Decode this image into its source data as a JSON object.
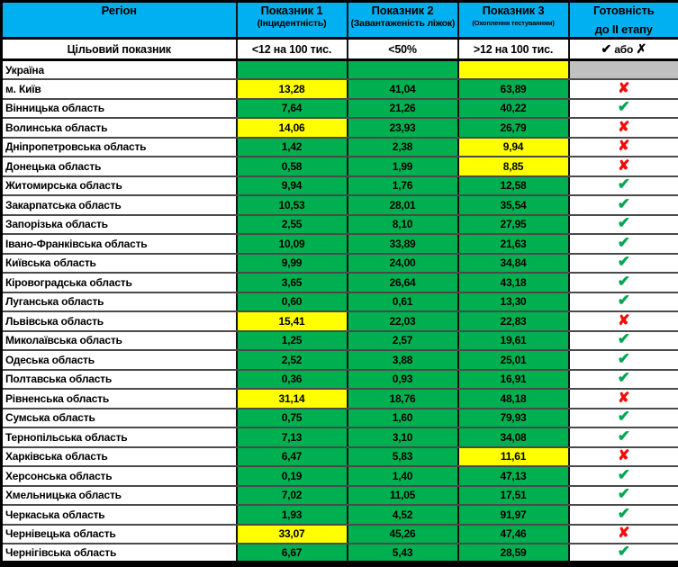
{
  "colors": {
    "header-blue": "#00B0F0",
    "green": "#00B050",
    "yellow": "#FFFF00",
    "gray": "#C0C0C0",
    "check-green": "#00A651",
    "x-red": "#F40A0A"
  },
  "icons": {
    "check": "✔",
    "x": "✘"
  },
  "chart_data": {
    "type": "table",
    "header": {
      "columns": [
        {
          "title": "Регіон",
          "subtitle": ""
        },
        {
          "title": "Показник 1",
          "subtitle": "(Інцидентність)"
        },
        {
          "title": "Показник 2",
          "subtitle": "(Завантаженість ліжок)"
        },
        {
          "title": "Показник 3",
          "subtitle": "(Охоплення тестуванням)"
        },
        {
          "title": "Готовність",
          "subtitle": "до II етапу"
        }
      ]
    },
    "target": {
      "label": "Цільовий показник",
      "values": [
        "<12 на 100 тис.",
        "<50%",
        ">12 на 100 тис."
      ],
      "ready": {
        "check": "✔",
        "or_text": "або",
        "x": "✗"
      }
    },
    "rows": [
      {
        "region": "Україна",
        "v1": "",
        "c1": "green",
        "v2": "",
        "c2": "green",
        "v3": "",
        "c3": "yellow",
        "ready": "empty"
      },
      {
        "region": "м. Київ",
        "v1": "13,28",
        "c1": "yellow",
        "v2": "41,04",
        "c2": "green",
        "v3": "63,89",
        "c3": "green",
        "ready": "x"
      },
      {
        "region": "Вінницька область",
        "v1": "7,64",
        "c1": "green",
        "v2": "21,26",
        "c2": "green",
        "v3": "40,22",
        "c3": "green",
        "ready": "check"
      },
      {
        "region": "Волинська область",
        "v1": "14,06",
        "c1": "yellow",
        "v2": "23,93",
        "c2": "green",
        "v3": "26,79",
        "c3": "green",
        "ready": "x"
      },
      {
        "region": "Дніпропетровська область",
        "v1": "1,42",
        "c1": "green",
        "v2": "2,38",
        "c2": "green",
        "v3": "9,94",
        "c3": "yellow",
        "ready": "x"
      },
      {
        "region": "Донецька область",
        "v1": "0,58",
        "c1": "green",
        "v2": "1,99",
        "c2": "green",
        "v3": "8,85",
        "c3": "yellow",
        "ready": "x"
      },
      {
        "region": "Житомирська область",
        "v1": "9,94",
        "c1": "green",
        "v2": "1,76",
        "c2": "green",
        "v3": "12,58",
        "c3": "green",
        "ready": "check"
      },
      {
        "region": "Закарпатська область",
        "v1": "10,53",
        "c1": "green",
        "v2": "28,01",
        "c2": "green",
        "v3": "35,54",
        "c3": "green",
        "ready": "check"
      },
      {
        "region": "Запорізька область",
        "v1": "2,55",
        "c1": "green",
        "v2": "8,10",
        "c2": "green",
        "v3": "27,95",
        "c3": "green",
        "ready": "check"
      },
      {
        "region": "Івано-Франківська область",
        "v1": "10,09",
        "c1": "green",
        "v2": "33,89",
        "c2": "green",
        "v3": "21,63",
        "c3": "green",
        "ready": "check"
      },
      {
        "region": "Київська область",
        "v1": "9,99",
        "c1": "green",
        "v2": "24,00",
        "c2": "green",
        "v3": "34,84",
        "c3": "green",
        "ready": "check"
      },
      {
        "region": "Кіровоградська область",
        "v1": "3,65",
        "c1": "green",
        "v2": "26,64",
        "c2": "green",
        "v3": "43,18",
        "c3": "green",
        "ready": "check"
      },
      {
        "region": "Луганська область",
        "v1": "0,60",
        "c1": "green",
        "v2": "0,61",
        "c2": "green",
        "v3": "13,30",
        "c3": "green",
        "ready": "check"
      },
      {
        "region": "Львівська область",
        "v1": "15,41",
        "c1": "yellow",
        "v2": "22,03",
        "c2": "green",
        "v3": "22,83",
        "c3": "green",
        "ready": "x"
      },
      {
        "region": "Миколаївська область",
        "v1": "1,25",
        "c1": "green",
        "v2": "2,57",
        "c2": "green",
        "v3": "19,61",
        "c3": "green",
        "ready": "check"
      },
      {
        "region": "Одеська область",
        "v1": "2,52",
        "c1": "green",
        "v2": "3,88",
        "c2": "green",
        "v3": "25,01",
        "c3": "green",
        "ready": "check"
      },
      {
        "region": "Полтавська область",
        "v1": "0,36",
        "c1": "green",
        "v2": "0,93",
        "c2": "green",
        "v3": "16,91",
        "c3": "green",
        "ready": "check"
      },
      {
        "region": "Рівненська область",
        "v1": "31,14",
        "c1": "yellow",
        "v2": "18,76",
        "c2": "green",
        "v3": "48,18",
        "c3": "green",
        "ready": "x"
      },
      {
        "region": "Сумська область",
        "v1": "0,75",
        "c1": "green",
        "v2": "1,60",
        "c2": "green",
        "v3": "79,93",
        "c3": "green",
        "ready": "check"
      },
      {
        "region": "Тернопільська область",
        "v1": "7,13",
        "c1": "green",
        "v2": "3,10",
        "c2": "green",
        "v3": "34,08",
        "c3": "green",
        "ready": "check"
      },
      {
        "region": "Харківська область",
        "v1": "6,47",
        "c1": "green",
        "v2": "5,83",
        "c2": "green",
        "v3": "11,61",
        "c3": "yellow",
        "ready": "x"
      },
      {
        "region": "Херсонська область",
        "v1": "0,19",
        "c1": "green",
        "v2": "1,40",
        "c2": "green",
        "v3": "47,13",
        "c3": "green",
        "ready": "check"
      },
      {
        "region": "Хмельницька область",
        "v1": "7,02",
        "c1": "green",
        "v2": "11,05",
        "c2": "green",
        "v3": "17,51",
        "c3": "green",
        "ready": "check"
      },
      {
        "region": "Черкаська область",
        "v1": "1,93",
        "c1": "green",
        "v2": "4,52",
        "c2": "green",
        "v3": "91,97",
        "c3": "green",
        "ready": "check"
      },
      {
        "region": "Чернівецька область",
        "v1": "33,07",
        "c1": "yellow",
        "v2": "45,26",
        "c2": "green",
        "v3": "47,46",
        "c3": "green",
        "ready": "x"
      },
      {
        "region": "Чернігівська область",
        "v1": "6,67",
        "c1": "green",
        "v2": "5,43",
        "c2": "green",
        "v3": "28,59",
        "c3": "green",
        "ready": "check"
      }
    ]
  }
}
